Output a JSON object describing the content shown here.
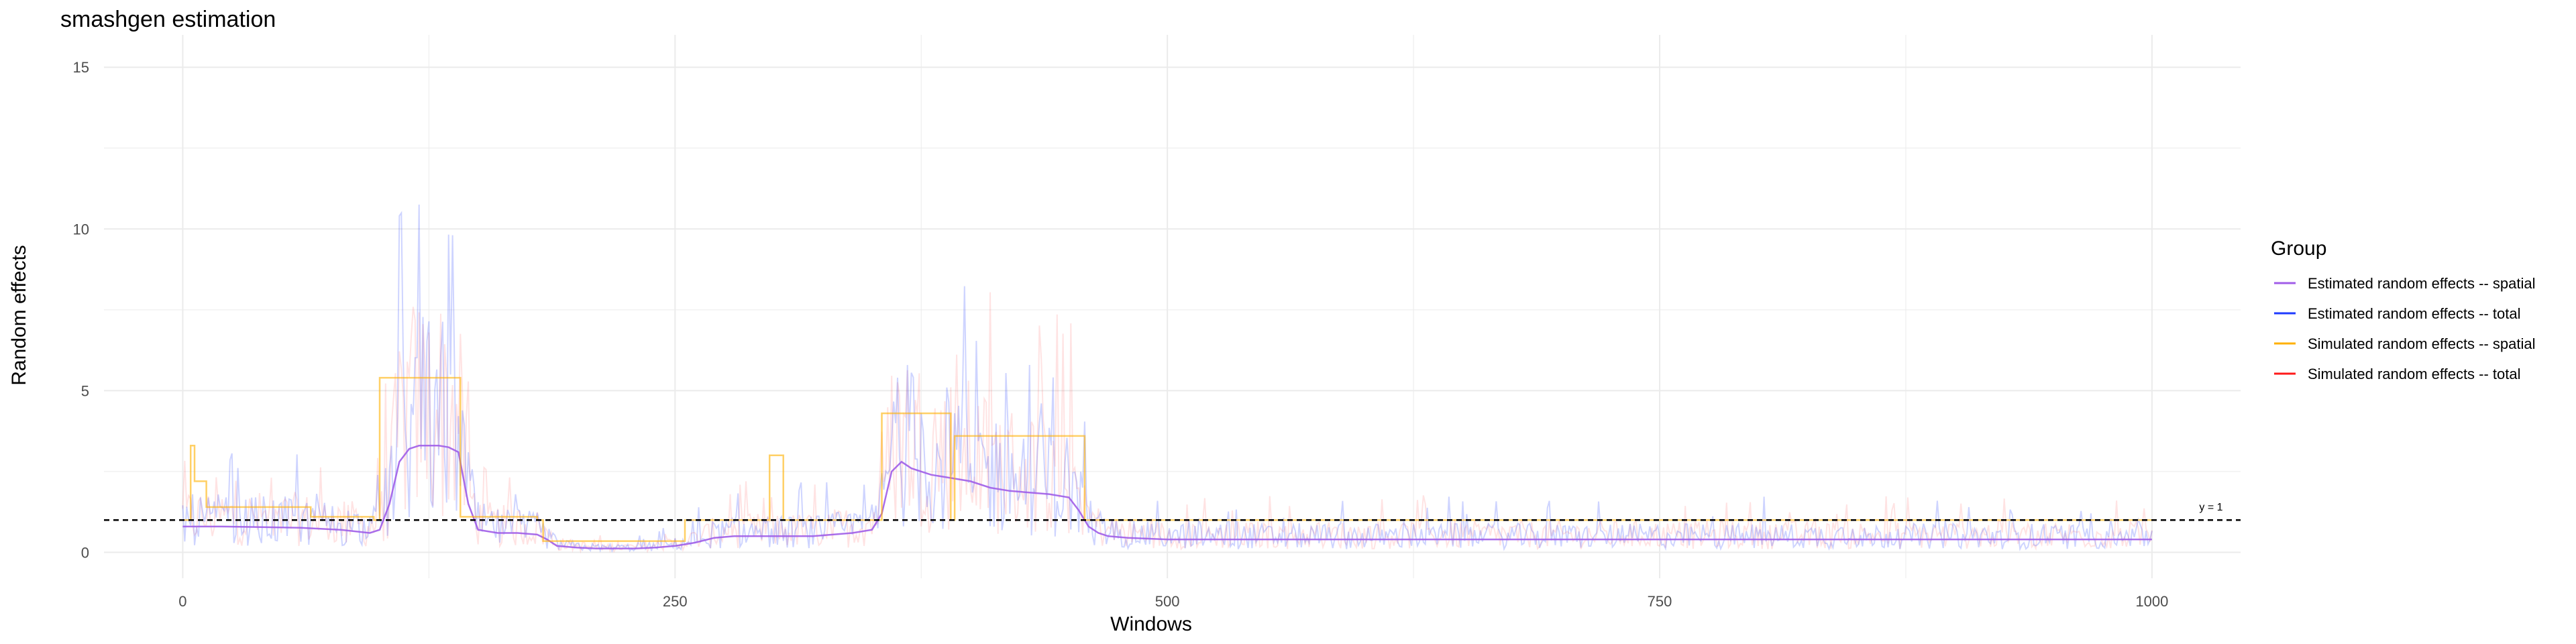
{
  "chart_data": {
    "type": "line",
    "title": "smashgen estimation",
    "xlabel": "Windows",
    "ylabel": "Random effects",
    "xlim": [
      -40,
      1045
    ],
    "ylim": [
      -0.8,
      16
    ],
    "x_ticks": [
      0,
      250,
      500,
      750,
      1000
    ],
    "y_ticks": [
      0,
      5,
      10,
      15
    ],
    "grid": true,
    "legend": {
      "title": "Group",
      "position": "right",
      "entries": [
        {
          "label": "Estimated random effects -- spatial",
          "color": "#a05de8"
        },
        {
          "label": "Estimated random effects -- total",
          "color": "#1f3bff"
        },
        {
          "label": "Simulated random effects -- spatial",
          "color": "#ffb000"
        },
        {
          "label": "Simulated random effects -- total",
          "color": "#ff1a1a"
        }
      ]
    },
    "hline": {
      "y": 1,
      "label": "y = 1"
    },
    "series": [
      {
        "name": "Estimated random effects -- spatial",
        "color": "#a05de8",
        "x": [
          0,
          20,
          40,
          60,
          80,
          95,
          100,
          105,
          110,
          115,
          120,
          125,
          130,
          135,
          140,
          145,
          150,
          160,
          170,
          180,
          185,
          190,
          200,
          210,
          220,
          230,
          240,
          250,
          260,
          270,
          280,
          290,
          300,
          310,
          320,
          330,
          340,
          350,
          355,
          360,
          365,
          370,
          375,
          380,
          390,
          400,
          410,
          420,
          430,
          440,
          450,
          455,
          460,
          465,
          470,
          480,
          500,
          550,
          600,
          650,
          700,
          750,
          800,
          850,
          900,
          950,
          1000
        ],
        "values": [
          0.8,
          0.8,
          0.78,
          0.76,
          0.7,
          0.6,
          0.7,
          1.5,
          2.8,
          3.2,
          3.3,
          3.3,
          3.3,
          3.25,
          3.1,
          1.5,
          0.7,
          0.6,
          0.6,
          0.55,
          0.4,
          0.2,
          0.15,
          0.12,
          0.12,
          0.12,
          0.15,
          0.2,
          0.3,
          0.45,
          0.5,
          0.5,
          0.5,
          0.5,
          0.5,
          0.55,
          0.6,
          0.7,
          1.2,
          2.5,
          2.8,
          2.6,
          2.5,
          2.4,
          2.3,
          2.2,
          2.0,
          1.9,
          1.85,
          1.8,
          1.7,
          1.3,
          0.8,
          0.6,
          0.5,
          0.45,
          0.4,
          0.4,
          0.4,
          0.4,
          0.4,
          0.4,
          0.4,
          0.4,
          0.4,
          0.4,
          0.4
        ]
      },
      {
        "name": "Simulated random effects -- spatial",
        "color": "#ffb000",
        "x": [
          0,
          4,
          4,
          6,
          6,
          12,
          12,
          65,
          65,
          97,
          97,
          100,
          100,
          141,
          141,
          180,
          180,
          183,
          183,
          255,
          255,
          298,
          298,
          305,
          305,
          345,
          345,
          355,
          355,
          390,
          390,
          392,
          392,
          458,
          458,
          465,
          465,
          1000
        ],
        "values": [
          1.0,
          1.0,
          3.3,
          3.3,
          2.2,
          2.2,
          1.4,
          1.4,
          1.1,
          1.1,
          1.0,
          1.0,
          5.4,
          5.4,
          1.1,
          1.1,
          1.0,
          1.0,
          0.35,
          0.35,
          1.0,
          1.0,
          3.0,
          3.0,
          1.0,
          1.0,
          1.0,
          1.0,
          4.3,
          4.3,
          1.0,
          1.0,
          3.6,
          3.6,
          1.0,
          1.0,
          1.0,
          1.0
        ]
      }
    ]
  }
}
